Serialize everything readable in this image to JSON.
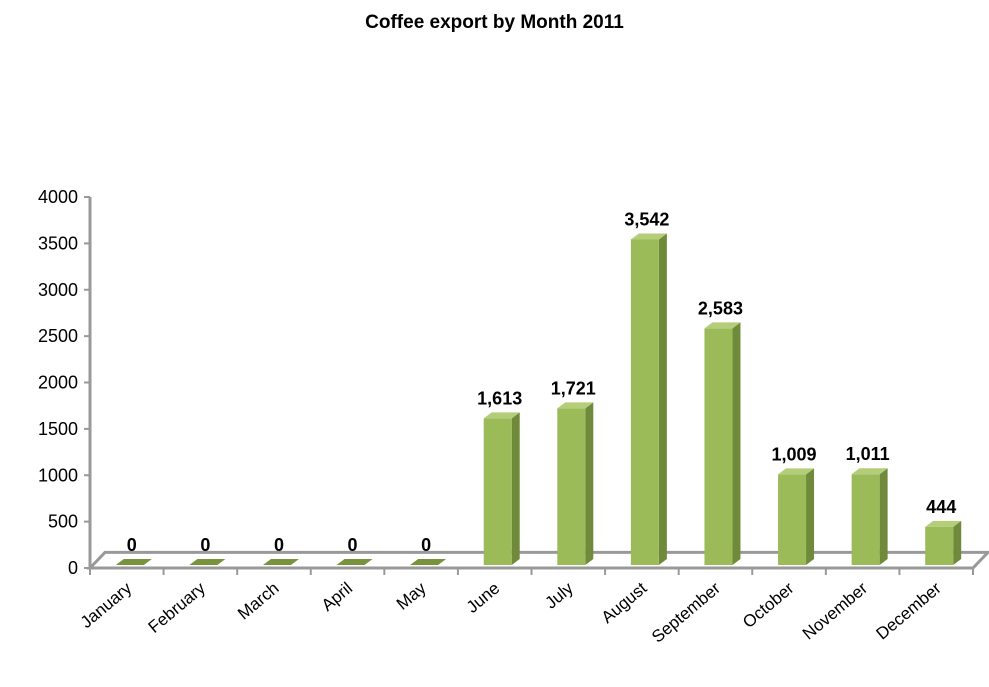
{
  "chart_data": {
    "type": "bar",
    "title": "Coffee export by Month 2011",
    "xlabel": "",
    "ylabel": "",
    "categories": [
      "January",
      "February",
      "March",
      "April",
      "May",
      "June",
      "July",
      "August",
      "September",
      "October",
      "November",
      "December"
    ],
    "values": [
      0,
      0,
      0,
      0,
      0,
      1613,
      1721,
      3542,
      2583,
      1009,
      1011,
      444
    ],
    "data_labels": [
      "0",
      "0",
      "0",
      "0",
      "0",
      "1,613",
      "1,721",
      "3,542",
      "2,583",
      "1,009",
      "1,011",
      "444"
    ],
    "ylim": [
      0,
      4000
    ],
    "yticks": [
      "0",
      "500",
      "1000",
      "1500",
      "2000",
      "2500",
      "3000",
      "3500",
      "4000"
    ],
    "grid": false,
    "legend": "none",
    "bar_color": "#9bbb59",
    "bar_side_color": "#6f8a3a",
    "bar_top_color": "#b3cd78",
    "style": "3d-column"
  }
}
